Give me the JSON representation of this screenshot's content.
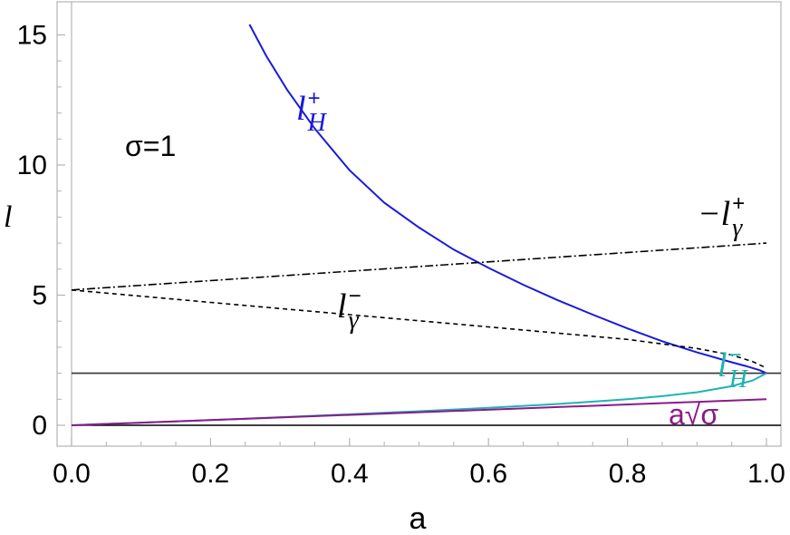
{
  "chart_data": {
    "type": "line",
    "xlabel": "a",
    "ylabel": "l",
    "xlim": [
      0,
      1.0
    ],
    "ylim": [
      -0.9,
      16.2
    ],
    "xticks": [
      "0.0",
      "0.2",
      "0.4",
      "0.6",
      "0.8",
      "1.0"
    ],
    "xtick_values": [
      0,
      0.2,
      0.4,
      0.6,
      0.8,
      1.0
    ],
    "yticks": [
      "0",
      "5",
      "10",
      "15"
    ],
    "ytick_values": [
      0,
      5,
      10,
      15
    ],
    "grid": false,
    "annotation": {
      "text": "σ=1"
    },
    "reference_lines": [
      {
        "y": 2,
        "color": "#333333"
      },
      {
        "y": 0,
        "color": "#000000"
      }
    ],
    "series": [
      {
        "name": "l_H^+",
        "label_main": "l",
        "label_sup": "+",
        "label_sub": "H",
        "color": "#1a1adb",
        "style": "solid",
        "x": [
          0.256,
          0.28,
          0.31,
          0.35,
          0.4,
          0.45,
          0.5,
          0.55,
          0.6,
          0.65,
          0.7,
          0.75,
          0.8,
          0.85,
          0.9,
          0.95,
          0.97,
          0.99,
          1.0
        ],
        "y": [
          15.4,
          14.2,
          12.9,
          11.4,
          9.8,
          8.55,
          7.6,
          6.75,
          6.05,
          5.4,
          4.8,
          4.25,
          3.72,
          3.23,
          2.8,
          2.42,
          2.28,
          2.12,
          2.0
        ]
      },
      {
        "name": "l_H^-",
        "label_main": "l",
        "label_sup": "−",
        "label_sub": "H",
        "color": "#1fb3b3",
        "style": "solid",
        "x": [
          0,
          0.1,
          0.2,
          0.3,
          0.4,
          0.5,
          0.6,
          0.7,
          0.8,
          0.85,
          0.9,
          0.95,
          0.98,
          1.0
        ],
        "y": [
          0,
          0.1,
          0.2,
          0.31,
          0.42,
          0.54,
          0.67,
          0.82,
          1.0,
          1.12,
          1.27,
          1.5,
          1.72,
          2.0
        ]
      },
      {
        "name": "a√σ",
        "label_main": "a√σ",
        "color": "#8b1a8b",
        "style": "solid",
        "x": [
          0,
          1.0
        ],
        "y": [
          0,
          1.0
        ]
      },
      {
        "name": "−l_γ^+",
        "label_main": "−l",
        "label_sup": "+",
        "label_sub": "γ",
        "color": "#000000",
        "style": "dashdot",
        "x": [
          0,
          1.0
        ],
        "y": [
          5.2,
          7.0
        ]
      },
      {
        "name": "l_γ^-",
        "label_main": "l",
        "label_sup": "−",
        "label_sub": "γ",
        "color": "#000000",
        "style": "dashed",
        "x": [
          0,
          0.2,
          0.4,
          0.6,
          0.8,
          0.9,
          0.95,
          0.98,
          1.0
        ],
        "y": [
          5.2,
          4.72,
          4.25,
          3.78,
          3.3,
          2.95,
          2.7,
          2.45,
          2.2
        ]
      }
    ]
  }
}
